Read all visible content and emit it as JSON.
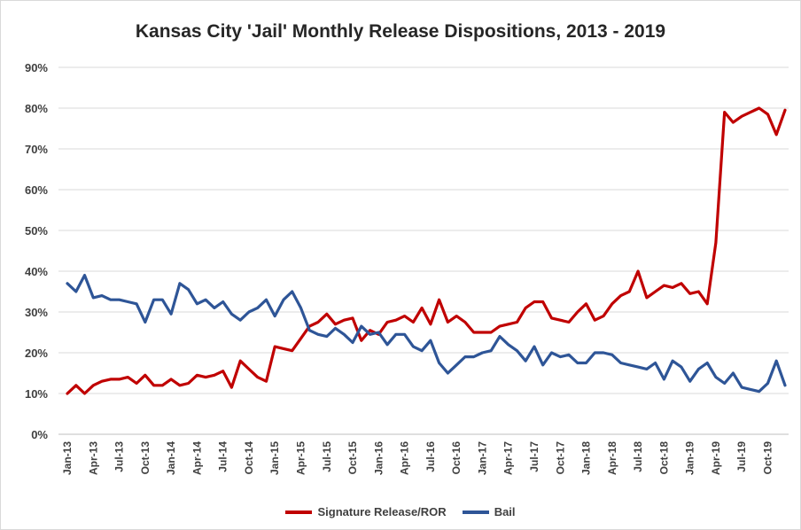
{
  "chart_data": {
    "type": "line",
    "title": "Kansas City 'Jail' Monthly Release Dispositions, 2013 - 2019",
    "xlabel": "",
    "ylabel": "",
    "ylim": [
      0,
      90
    ],
    "yticks": [
      "0%",
      "10%",
      "20%",
      "30%",
      "40%",
      "50%",
      "60%",
      "70%",
      "80%",
      "90%"
    ],
    "xtick_labels": [
      "Jan-13",
      "Apr-13",
      "Jul-13",
      "Oct-13",
      "Jan-14",
      "Apr-14",
      "Jul-14",
      "Oct-14",
      "Jan-15",
      "Apr-15",
      "Jul-15",
      "Oct-15",
      "Jan-16",
      "Apr-16",
      "Jul-16",
      "Oct-16",
      "Jan-17",
      "Apr-17",
      "Jul-17",
      "Oct-17",
      "Jan-18",
      "Apr-18",
      "Jul-18",
      "Oct-18",
      "Jan-19",
      "Apr-19",
      "Jul-19",
      "Oct-19"
    ],
    "grid": true,
    "legend_position": "bottom",
    "series": [
      {
        "name": "Signature Release/ROR",
        "color": "#c00000",
        "values": [
          10,
          12,
          10,
          12,
          13,
          13.5,
          13.5,
          14,
          12.5,
          14.5,
          12,
          12,
          13.5,
          12,
          12.5,
          14.5,
          14,
          14.5,
          15.5,
          11.5,
          18,
          16,
          14,
          13,
          21.5,
          21,
          20.5,
          23.5,
          26.5,
          27.5,
          29.5,
          27,
          28,
          28.5,
          23,
          25.5,
          24.5,
          27.5,
          28,
          29,
          27.5,
          31,
          27,
          33,
          27.5,
          29,
          27.5,
          25,
          25,
          25,
          26.5,
          27,
          27.5,
          31,
          32.5,
          32.5,
          28.5,
          28,
          27.5,
          30,
          32,
          28,
          29,
          32,
          34,
          35,
          40,
          33.5,
          35,
          36.5,
          36,
          37,
          34.5,
          35,
          32,
          47,
          79,
          76.5,
          78,
          79,
          80,
          78.5,
          73.5,
          79.5
        ]
      },
      {
        "name": "Bail",
        "color": "#2e5597",
        "values": [
          37,
          35,
          39,
          33.5,
          34,
          33,
          33,
          32.5,
          32,
          27.5,
          33,
          33,
          29.5,
          37,
          35.5,
          32,
          33,
          31,
          32.5,
          29.5,
          28,
          30,
          31,
          33,
          29,
          33,
          35,
          31,
          25.5,
          24.5,
          24,
          26,
          24.5,
          22.5,
          26.5,
          24.5,
          25,
          22,
          24.5,
          24.5,
          21.5,
          20.5,
          23,
          17.5,
          15,
          17,
          19,
          19,
          20,
          20.5,
          24,
          22,
          20.5,
          18,
          21.5,
          17,
          20,
          19,
          19.5,
          17.5,
          17.5,
          20,
          20,
          19.5,
          17.5,
          17,
          16.5,
          16,
          17.5,
          13.5,
          18,
          16.5,
          13,
          16,
          17.5,
          14,
          12.5,
          15,
          11.5,
          11,
          10.5,
          12.5,
          18,
          12
        ]
      }
    ]
  }
}
